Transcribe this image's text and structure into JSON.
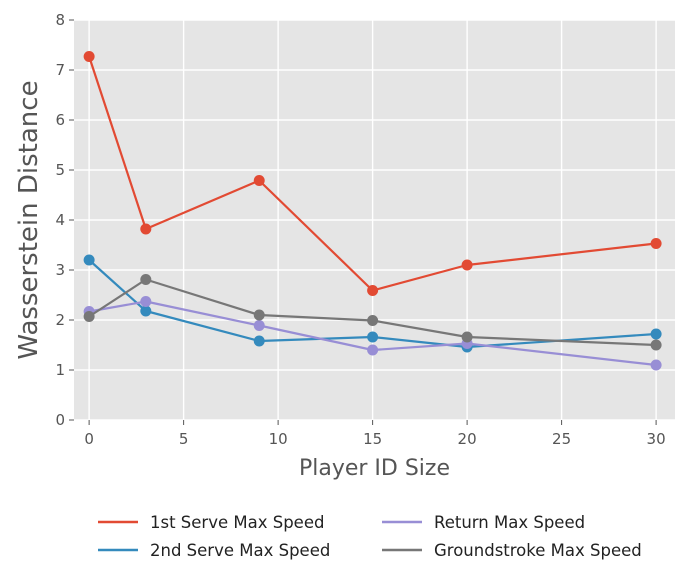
{
  "chart_data": {
    "type": "line",
    "title": "",
    "xlabel": "Player ID Size",
    "ylabel": "Wasserstein Distance",
    "x": [
      0,
      3,
      9,
      15,
      20,
      30
    ],
    "xlim": [
      -0.8,
      31
    ],
    "ylim": [
      0,
      8
    ],
    "xticks": [
      0,
      5,
      10,
      15,
      20,
      25,
      30
    ],
    "yticks": [
      0,
      1,
      2,
      3,
      4,
      5,
      6,
      7,
      8
    ],
    "grid": true,
    "legend_position": "bottom",
    "series": [
      {
        "name": "1st Serve Max Speed",
        "color": "#E24A33",
        "values": [
          7.27,
          3.82,
          4.79,
          2.59,
          3.1,
          3.53
        ]
      },
      {
        "name": "2nd Serve Max Speed",
        "color": "#348ABD",
        "values": [
          3.2,
          2.18,
          1.58,
          1.66,
          1.46,
          1.72
        ]
      },
      {
        "name": "Return Max Speed",
        "color": "#988ED5",
        "values": [
          2.17,
          2.37,
          1.89,
          1.4,
          1.53,
          1.1
        ]
      },
      {
        "name": "Groundstroke Max Speed",
        "color": "#777777",
        "values": [
          2.07,
          2.81,
          2.1,
          1.99,
          1.66,
          1.5
        ]
      }
    ]
  }
}
